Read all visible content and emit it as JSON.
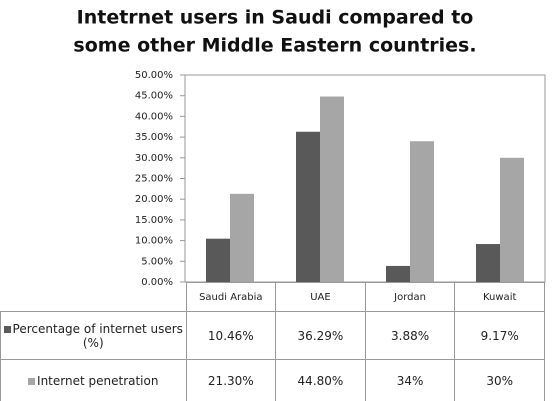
{
  "chart_data": {
    "type": "bar",
    "title": [
      "Intetrnet users in Saudi compared to",
      "some other Middle Eastern countries."
    ],
    "categories": [
      "Saudi Arabia",
      "UAE",
      "Jordan",
      "Kuwait"
    ],
    "series": [
      {
        "name": "Percentage of internet users (%)",
        "color": "#595959",
        "values": [
          10.46,
          36.29,
          3.88,
          9.17
        ],
        "value_labels": [
          "10.46%",
          "36.29%",
          "3.88%",
          "9.17%"
        ]
      },
      {
        "name": "Internet penetration",
        "color": "#a6a6a6",
        "values": [
          21.3,
          44.8,
          34,
          30
        ],
        "value_labels": [
          "21.30%",
          "44.80%",
          "34%",
          "30%"
        ]
      }
    ],
    "ylim": [
      0,
      50
    ],
    "yticks": [
      {
        "value": 0,
        "label": "0.00%"
      },
      {
        "value": 5,
        "label": "5.00%"
      },
      {
        "value": 10,
        "label": "10.00%"
      },
      {
        "value": 15,
        "label": "15.00%"
      },
      {
        "value": 20,
        "label": "20.00%"
      },
      {
        "value": 25,
        "label": "25.00%"
      },
      {
        "value": 30,
        "label": "30.00%"
      },
      {
        "value": 35,
        "label": "35.00%"
      },
      {
        "value": 40,
        "label": "40.00%"
      },
      {
        "value": 45,
        "label": "45.00%"
      },
      {
        "value": 50,
        "label": "50.00%"
      }
    ],
    "grid": false
  }
}
